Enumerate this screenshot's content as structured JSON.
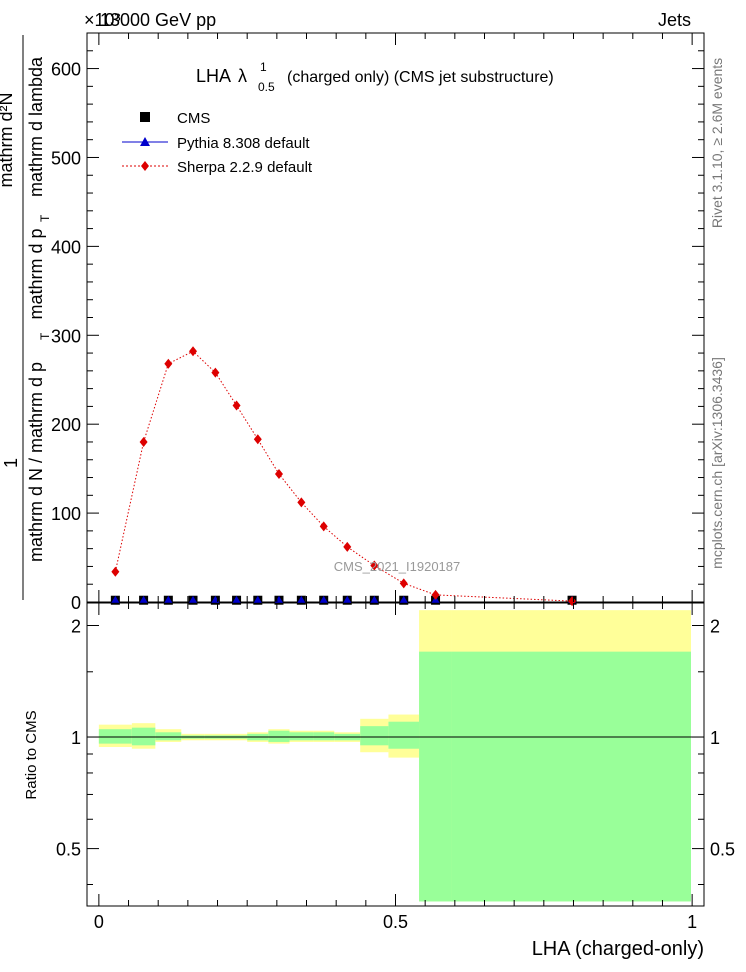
{
  "header": {
    "left": "13000 GeV pp",
    "right": "Jets",
    "exponent": "×10³"
  },
  "main_plot": {
    "title": "LHA",
    "title_lambda": "λ",
    "title_sup": "1",
    "title_sub": "0.5",
    "title_rest": "(charged only) (CMS jet substructure)",
    "ylabel_numerator_1": "1",
    "ylabel_denominator": "mathrm d N / mathrm d p",
    "ylabel_denominator_sub": "T",
    "ylabel_numerator_2": "mathrm d²N",
    "ylabel_denominator_2": "mathrm d p",
    "ylabel_denominator_2_sub": "T",
    "ylabel_denominator_2_rest": "mathrm d lambda",
    "watermark": "CMS_2021_I1920187",
    "yticks": [
      "0",
      "100",
      "200",
      "300",
      "400",
      "500",
      "600"
    ],
    "legend": [
      {
        "label": "CMS",
        "color": "#000000",
        "marker": "square"
      },
      {
        "label": "Pythia 8.308 default",
        "color": "#0000cc",
        "marker": "triangle"
      },
      {
        "label": "Sherpa 2.2.9 default",
        "color": "#dd0000",
        "marker": "diamond"
      }
    ]
  },
  "ratio_plot": {
    "ylabel": "Ratio to CMS",
    "yticks": [
      "0.5",
      "1",
      "2"
    ],
    "xticks": [
      "0",
      "0.5",
      "1"
    ],
    "xlabel": "LHA (charged-only)"
  },
  "side_labels": {
    "rivet": "Rivet 3.1.10, ≥ 2.6M events",
    "mcplots": "mcplots.cern.ch [arXiv:1306.3436]"
  },
  "chart_data": {
    "type": "scatter",
    "x_unit_note": "",
    "bin_edges": [
      0.0,
      0.0556,
      0.0952,
      0.1389,
      0.1786,
      0.2143,
      0.25,
      0.2857,
      0.3214,
      0.3611,
      0.3968,
      0.4405,
      0.4881,
      0.5397,
      0.5952,
      1.0
    ],
    "x": [
      0.0278,
      0.0754,
      0.1171,
      0.1587,
      0.1964,
      0.2321,
      0.2679,
      0.3036,
      0.3413,
      0.379,
      0.4187,
      0.4643,
      0.5139,
      0.5675,
      0.7976
    ],
    "series": [
      {
        "name": "CMS",
        "values": [
          0.3,
          0.3,
          0.3,
          0.3,
          0.3,
          0.3,
          0.3,
          0.3,
          0.3,
          0.3,
          0.3,
          0.3,
          0.3,
          0.3,
          0.3
        ]
      },
      {
        "name": "Pythia 8.308 default",
        "values": [
          0.3,
          0.3,
          0.3,
          0.3,
          0.3,
          0.3,
          0.3,
          0.3,
          0.3,
          0.3,
          0.3,
          0.3,
          0.3,
          0.3,
          0.3
        ]
      },
      {
        "name": "Sherpa 2.2.9 default",
        "values": [
          34,
          180,
          268,
          282,
          258,
          221,
          183,
          144,
          112,
          85,
          62,
          41,
          21,
          8,
          1
        ]
      }
    ],
    "ylim": [
      0,
      640
    ],
    "xlim": [
      -0.02,
      1.02
    ],
    "ratio": {
      "ylim": [
        0.35,
        2.3
      ],
      "log_scale": true,
      "sherpa_ratio": [
        1.0,
        1.0,
        1.0,
        1.0,
        1.0,
        1.0,
        1.0,
        1.0,
        1.0,
        1.0,
        1.0,
        1.0,
        1.0,
        1.0,
        1.0
      ],
      "band_inner": [
        [
          0.96,
          1.05
        ],
        [
          0.95,
          1.06
        ],
        [
          0.98,
          1.03
        ],
        [
          0.99,
          1.01
        ],
        [
          0.99,
          1.01
        ],
        [
          0.99,
          1.01
        ],
        [
          0.98,
          1.02
        ],
        [
          0.97,
          1.04
        ],
        [
          0.98,
          1.03
        ],
        [
          0.98,
          1.03
        ],
        [
          0.98,
          1.02
        ],
        [
          0.95,
          1.07
        ],
        [
          0.93,
          1.1
        ],
        [
          0.36,
          1.7
        ],
        [
          0.36,
          1.7
        ]
      ],
      "band_outer": [
        [
          0.94,
          1.08
        ],
        [
          0.93,
          1.09
        ],
        [
          0.97,
          1.05
        ],
        [
          0.98,
          1.02
        ],
        [
          0.98,
          1.02
        ],
        [
          0.98,
          1.02
        ],
        [
          0.97,
          1.03
        ],
        [
          0.96,
          1.05
        ],
        [
          0.97,
          1.04
        ],
        [
          0.97,
          1.04
        ],
        [
          0.97,
          1.03
        ],
        [
          0.91,
          1.12
        ],
        [
          0.88,
          1.15
        ],
        [
          0.36,
          2.2
        ],
        [
          0.36,
          2.2
        ]
      ]
    },
    "colors": {
      "band_outer": "#ffff99",
      "band_inner": "#99ff99",
      "sherpa": "#dd0000",
      "pythia": "#0000cc",
      "cms": "#000000"
    }
  }
}
